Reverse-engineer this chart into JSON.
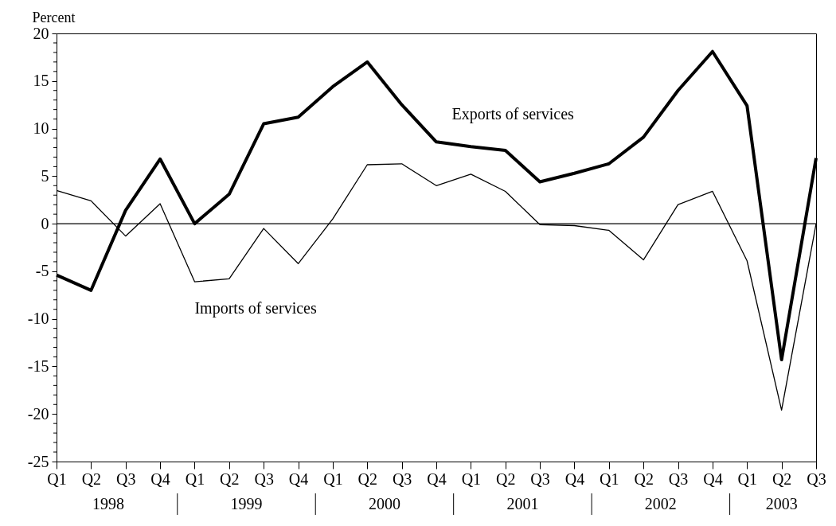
{
  "chart_data": {
    "type": "line",
    "ylabel": "Percent",
    "categories": [
      "Q1",
      "Q2",
      "Q3",
      "Q4",
      "Q1",
      "Q2",
      "Q3",
      "Q4",
      "Q1",
      "Q2",
      "Q3",
      "Q4",
      "Q1",
      "Q2",
      "Q3",
      "Q4",
      "Q1",
      "Q2",
      "Q3",
      "Q4",
      "Q1",
      "Q2",
      "Q3"
    ],
    "series": [
      {
        "name": "Exports of services",
        "color": "#000000",
        "values": [
          -5.4,
          -7.0,
          1.4,
          6.8,
          0.0,
          3.1,
          10.5,
          11.2,
          14.4,
          17.0,
          12.5,
          8.6,
          8.1,
          7.7,
          4.4,
          5.3,
          6.3,
          9.1,
          14.0,
          18.1,
          12.4,
          -14.3,
          6.9
        ]
      },
      {
        "name": "Imports of services",
        "color": "#000000",
        "values": [
          3.5,
          2.4,
          -1.3,
          2.1,
          -6.1,
          -5.8,
          -0.5,
          -4.2,
          0.5,
          6.2,
          6.3,
          4.0,
          5.2,
          3.4,
          -0.1,
          -0.2,
          -0.7,
          -3.8,
          2.0,
          3.4,
          -3.9,
          -19.6,
          0.0
        ]
      }
    ],
    "annotations": [
      "1998",
      "1999",
      "2000",
      "2001",
      "2002",
      "2003"
    ],
    "ylim": [
      -25,
      20
    ],
    "yticks": [
      -25,
      {
        "value": -24,
        "label": null
      },
      {
        "value": -23,
        "label": null
      },
      {
        "value": -22,
        "label": null
      },
      {
        "value": -21,
        "label": null
      },
      -20,
      {
        "value": -19,
        "label": null
      },
      {
        "value": -18,
        "label": null
      },
      {
        "value": -17,
        "label": null
      },
      {
        "value": -16,
        "label": null
      },
      -15,
      {
        "value": -14,
        "label": null
      },
      {
        "value": -13,
        "label": null
      },
      {
        "value": -12,
        "label": null
      },
      {
        "value": -11,
        "label": null
      },
      -10,
      {
        "value": -9,
        "label": null
      },
      {
        "value": -8,
        "label": null
      },
      {
        "value": -7,
        "label": null
      },
      {
        "value": -6,
        "label": null
      },
      -5,
      {
        "value": -4,
        "label": null
      },
      {
        "value": -3,
        "label": null
      },
      {
        "value": -2,
        "label": null
      },
      {
        "value": -1,
        "label": null
      },
      0,
      {
        "value": 1,
        "label": null
      },
      {
        "value": 2,
        "label": null
      },
      {
        "value": 3,
        "label": null
      },
      {
        "value": 4,
        "label": null
      },
      5,
      {
        "value": 6,
        "label": null
      },
      {
        "value": 7,
        "label": null
      },
      {
        "value": 8,
        "label": null
      },
      {
        "value": 9,
        "label": null
      },
      10,
      {
        "value": 11,
        "label": null
      },
      {
        "value": 12,
        "label": null
      },
      {
        "value": 13,
        "label": null
      },
      {
        "value": 14,
        "label": null
      },
      15,
      {
        "value": 16,
        "label": null
      },
      {
        "value": 17,
        "label": null
      },
      {
        "value": 18,
        "label": null
      },
      {
        "value": 19,
        "label": null
      },
      20
    ],
    "ref_lines": [
      {
        "axis": "y",
        "value": 0
      }
    ],
    "grid": false,
    "legend": false,
    "line_style": "solid",
    "marker": "none"
  }
}
